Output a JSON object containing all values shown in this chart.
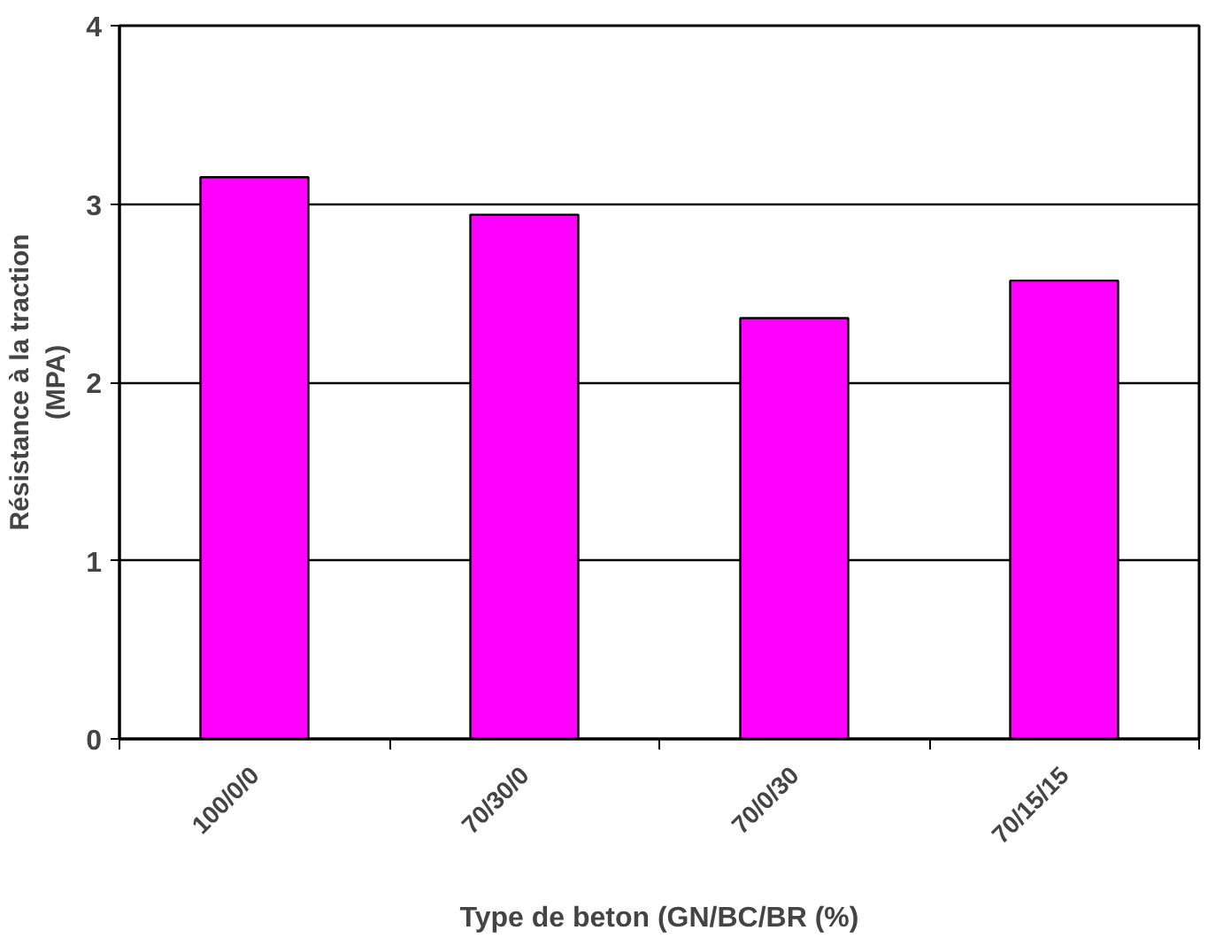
{
  "chart_data": {
    "type": "bar",
    "xlabel": "Type de beton (GN/BC/BR (%)",
    "ylabel": "Résistance à la traction\n(MPA)",
    "categories": [
      "100/0/0",
      "70/30/0",
      "70/0/30",
      "70/15/15"
    ],
    "values": [
      3.15,
      2.94,
      2.36,
      2.57
    ],
    "color": "#ff00ff",
    "ylim": [
      0,
      4
    ],
    "yticks": [
      0,
      1,
      2,
      3,
      4
    ],
    "grid": "y"
  }
}
